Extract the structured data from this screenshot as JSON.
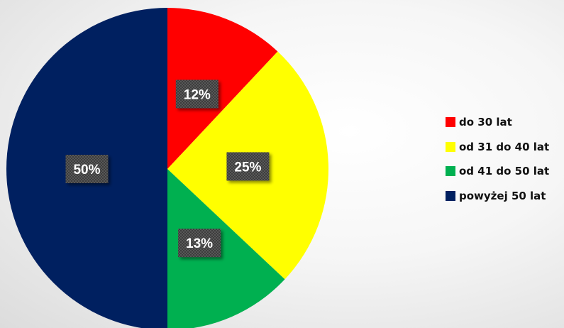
{
  "chart_data": {
    "type": "pie",
    "title": "",
    "categories": [
      "do 30 lat",
      "od 31 do 40 lat",
      "od 41 do 50 lat",
      "powyżej 50 lat"
    ],
    "values": [
      12,
      25,
      13,
      50
    ],
    "labels": [
      "12%",
      "25%",
      "13%",
      "50%"
    ],
    "colors": [
      "#ff0000",
      "#ffff00",
      "#00b050",
      "#002060"
    ],
    "legend_position": "right",
    "start_angle": "top",
    "direction": "clockwise"
  }
}
